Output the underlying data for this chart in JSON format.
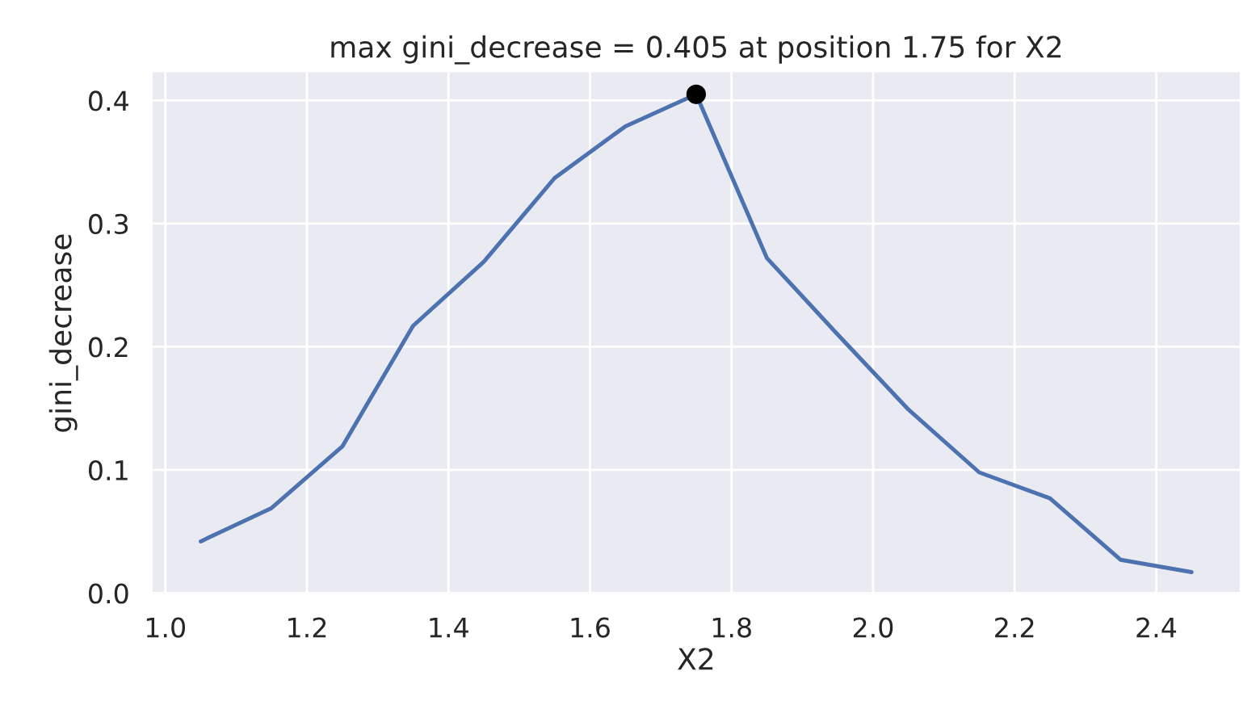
{
  "chart_data": {
    "type": "line",
    "title": "max gini_decrease = 0.405 at position 1.75 for X2",
    "xlabel": "X2",
    "ylabel": "gini_decrease",
    "series": [
      {
        "color": "#4c72b0",
        "x": [
          1.05,
          1.15,
          1.25,
          1.35,
          1.45,
          1.55,
          1.65,
          1.75,
          1.85,
          1.95,
          2.05,
          2.15,
          2.25,
          2.35,
          2.45
        ],
        "values": [
          0.042,
          0.069,
          0.119,
          0.217,
          0.269,
          0.337,
          0.379,
          0.405,
          0.272,
          0.21,
          0.149,
          0.098,
          0.077,
          0.027,
          0.017
        ]
      },
      {
        "type": "scatter",
        "color": "#000000",
        "x": [
          1.75
        ],
        "values": [
          0.405
        ]
      }
    ],
    "xlim": [
      0.98,
      2.52
    ],
    "ylim": [
      -0.002,
      0.424
    ],
    "xticks": [
      {
        "value": 1.0,
        "label": "1.0"
      },
      1.2,
      1.4,
      1.6,
      1.8,
      {
        "value": 2.0,
        "label": "2.0"
      },
      2.2,
      2.4
    ],
    "yticks": [
      {
        "value": 0.0,
        "label": "0.0"
      },
      0.1,
      0.2,
      0.3,
      0.4
    ],
    "grid": true
  }
}
